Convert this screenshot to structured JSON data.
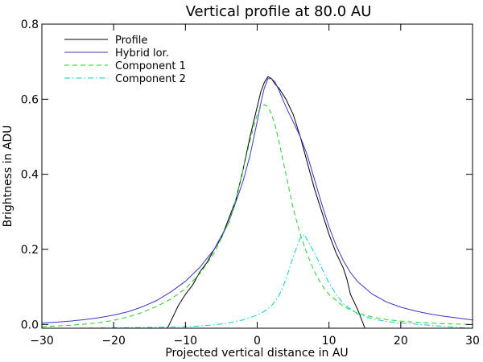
{
  "chart_data": {
    "type": "line",
    "title": "Vertical profile at 80.0 AU",
    "xlabel": "Projected vertical distance in AU",
    "ylabel": "Brightness in ADU",
    "xlim": [
      -30,
      30
    ],
    "ylim": [
      -0.01,
      0.8
    ],
    "xticks": [
      -30,
      -20,
      -10,
      0,
      10,
      20,
      30
    ],
    "xtick_labels": [
      "−30",
      "−20",
      "−10",
      "0",
      "10",
      "20",
      "30"
    ],
    "yticks": [
      0.0,
      0.2,
      0.4,
      0.6,
      0.8
    ],
    "ytick_labels": [
      "0.0",
      "0.2",
      "0.4",
      "0.6",
      "0.8"
    ],
    "grid": false,
    "legend_position": "top-left",
    "series": [
      {
        "name": "Profile",
        "color": "#000000",
        "dash": "solid",
        "x": [
          -12.5,
          -12.0,
          -11.5,
          -11.0,
          -10.5,
          -10.0,
          -9.0,
          -8.0,
          -7.0,
          -6.0,
          -5.0,
          -4.0,
          -3.0,
          -2.0,
          -1.0,
          0.0,
          0.5,
          1.0,
          1.5,
          2.0,
          2.5,
          3.0,
          4.0,
          5.0,
          6.0,
          7.0,
          8.0,
          9.0,
          10.0,
          11.0,
          12.0,
          12.5,
          13.0,
          14.0,
          15.0
        ],
        "y": [
          -0.01,
          0.01,
          0.03,
          0.05,
          0.065,
          0.08,
          0.105,
          0.14,
          0.165,
          0.2,
          0.23,
          0.28,
          0.33,
          0.41,
          0.5,
          0.58,
          0.62,
          0.645,
          0.66,
          0.655,
          0.64,
          0.63,
          0.6,
          0.56,
          0.5,
          0.43,
          0.36,
          0.3,
          0.24,
          0.19,
          0.15,
          0.12,
          0.08,
          0.04,
          -0.01
        ]
      },
      {
        "name": "Hybrid lor.",
        "color": "#3a35c8",
        "dash": "solid",
        "x": [
          -30,
          -28,
          -26,
          -24,
          -22,
          -20,
          -18,
          -16,
          -14,
          -12,
          -10,
          -8,
          -6,
          -4,
          -2,
          -1,
          0,
          0.5,
          1,
          1.5,
          2,
          2.5,
          3,
          4,
          5,
          6,
          7,
          8,
          9,
          10,
          11,
          12,
          13,
          14,
          16,
          18,
          20,
          22,
          24,
          26,
          28,
          30
        ],
        "y": [
          0.004,
          0.006,
          0.009,
          0.013,
          0.018,
          0.025,
          0.034,
          0.047,
          0.064,
          0.087,
          0.115,
          0.152,
          0.2,
          0.27,
          0.38,
          0.45,
          0.54,
          0.59,
          0.63,
          0.655,
          0.655,
          0.645,
          0.625,
          0.58,
          0.54,
          0.5,
          0.45,
          0.385,
          0.32,
          0.26,
          0.21,
          0.17,
          0.138,
          0.114,
          0.081,
          0.06,
          0.046,
          0.036,
          0.028,
          0.022,
          0.017,
          0.012
        ]
      },
      {
        "name": "Component 1",
        "color": "#1fd11f",
        "dash": "dash",
        "x": [
          -30,
          -28,
          -26,
          -24,
          -22,
          -20,
          -18,
          -16,
          -14,
          -12,
          -10,
          -8,
          -6,
          -4,
          -3,
          -2,
          -1,
          0,
          0.5,
          1,
          1.5,
          2,
          2.5,
          3,
          4,
          5,
          6,
          7,
          8,
          9,
          10,
          12,
          14,
          16,
          18,
          20,
          22,
          24,
          26,
          28,
          30
        ],
        "y": [
          -0.006,
          -0.004,
          -0.002,
          0.001,
          0.005,
          0.011,
          0.02,
          0.032,
          0.048,
          0.068,
          0.095,
          0.135,
          0.19,
          0.27,
          0.33,
          0.41,
          0.49,
          0.56,
          0.58,
          0.585,
          0.58,
          0.56,
          0.53,
          0.49,
          0.4,
          0.31,
          0.24,
          0.185,
          0.14,
          0.105,
          0.08,
          0.048,
          0.03,
          0.02,
          0.013,
          0.009,
          0.006,
          0.004,
          0.002,
          0.001,
          0.0
        ]
      },
      {
        "name": "Component 2",
        "color": "#00d0c8",
        "dash": "dashdot",
        "x": [
          -30,
          -25,
          -20,
          -15,
          -10,
          -8,
          -6,
          -4,
          -2,
          0,
          1,
          2,
          3,
          4,
          5,
          6,
          6.5,
          7,
          8,
          9,
          10,
          11,
          12,
          14,
          16,
          18,
          20,
          22,
          24,
          26,
          28,
          30
        ],
        "y": [
          -0.01,
          -0.01,
          -0.009,
          -0.008,
          -0.006,
          -0.004,
          -0.001,
          0.004,
          0.012,
          0.025,
          0.035,
          0.05,
          0.075,
          0.12,
          0.18,
          0.23,
          0.24,
          0.225,
          0.19,
          0.15,
          0.11,
          0.08,
          0.055,
          0.028,
          0.015,
          0.008,
          0.004,
          0.001,
          -0.002,
          -0.005,
          -0.008,
          -0.01
        ]
      }
    ]
  }
}
